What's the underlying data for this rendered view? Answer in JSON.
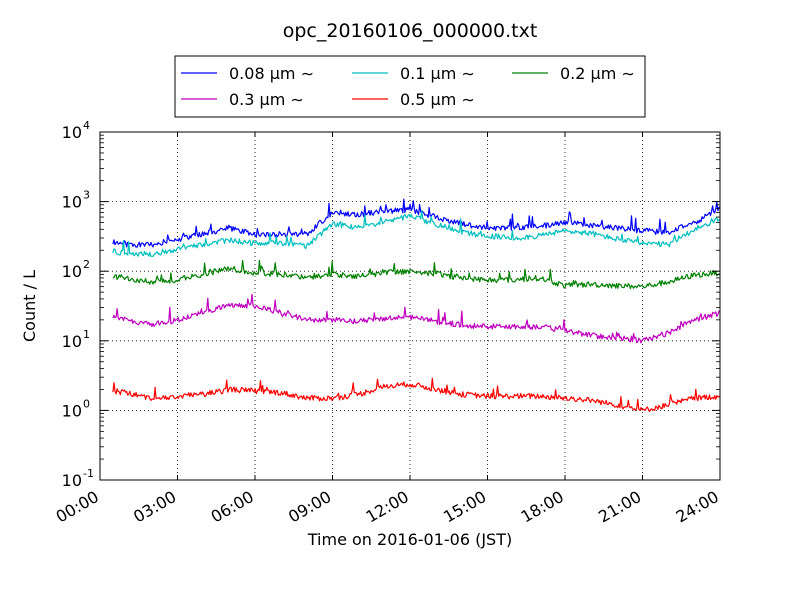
{
  "chart_data": {
    "type": "line",
    "title": "opc_20160106_000000.txt",
    "xlabel": "Time on 2016-01-06 (JST)",
    "ylabel": "Count / L",
    "xlim": [
      0,
      24
    ],
    "ylim": [
      0.1,
      10000
    ],
    "yscale": "log",
    "grid": true,
    "legend_position": "top-center",
    "x_ticks": [
      {
        "value": 0,
        "label": "00:00"
      },
      {
        "value": 3,
        "label": "03:00"
      },
      {
        "value": 6,
        "label": "06:00"
      },
      {
        "value": 9,
        "label": "09:00"
      },
      {
        "value": 12,
        "label": "12:00"
      },
      {
        "value": 15,
        "label": "15:00"
      },
      {
        "value": 18,
        "label": "18:00"
      },
      {
        "value": 21,
        "label": "21:00"
      },
      {
        "value": 24,
        "label": "24:00"
      }
    ],
    "y_ticks": [
      {
        "value": 0.1,
        "base": "10",
        "exp": "-1"
      },
      {
        "value": 1,
        "base": "10",
        "exp": "0"
      },
      {
        "value": 10,
        "base": "10",
        "exp": "1"
      },
      {
        "value": 100,
        "base": "10",
        "exp": "2"
      },
      {
        "value": 1000,
        "base": "10",
        "exp": "3"
      },
      {
        "value": 10000,
        "base": "10",
        "exp": "4"
      }
    ],
    "x": [
      0,
      1,
      2,
      3,
      4,
      5,
      6,
      7,
      8,
      9,
      10,
      11,
      12,
      13,
      14,
      15,
      16,
      17,
      18,
      19,
      20,
      21,
      22,
      23,
      24
    ],
    "series": [
      {
        "name": "0.08 μm ∼",
        "color": "#0000ff",
        "values": [
          280,
          240,
          240,
          290,
          340,
          420,
          330,
          340,
          340,
          700,
          650,
          720,
          760,
          600,
          480,
          420,
          420,
          440,
          500,
          460,
          420,
          380,
          360,
          500,
          780
        ]
      },
      {
        "name": "0.1 μm ∼",
        "color": "#00bfbf",
        "values": [
          210,
          180,
          175,
          210,
          240,
          280,
          250,
          250,
          230,
          480,
          420,
          520,
          620,
          480,
          360,
          320,
          300,
          320,
          380,
          350,
          290,
          250,
          240,
          400,
          560
        ]
      },
      {
        "name": "0.2 μm ∼",
        "color": "#008000",
        "values": [
          90,
          80,
          70,
          75,
          90,
          110,
          95,
          90,
          80,
          90,
          85,
          95,
          100,
          92,
          80,
          75,
          75,
          80,
          62,
          65,
          62,
          60,
          70,
          88,
          95
        ]
      },
      {
        "name": "0.3 μm ∼",
        "color": "#bf00bf",
        "values": [
          25,
          20,
          17,
          20,
          25,
          32,
          32,
          25,
          20,
          20,
          19,
          21,
          22,
          19,
          17,
          16,
          16,
          16,
          14,
          12,
          11,
          10,
          13,
          20,
          25
        ]
      },
      {
        "name": "0.5 μm ∼",
        "color": "#ff0000",
        "values": [
          2.0,
          1.8,
          1.5,
          1.6,
          1.7,
          2.0,
          1.9,
          1.8,
          1.5,
          1.5,
          1.7,
          2.2,
          2.4,
          2.0,
          1.7,
          1.6,
          1.6,
          1.6,
          1.5,
          1.4,
          1.2,
          1.0,
          1.2,
          1.5,
          1.6
        ]
      }
    ]
  }
}
